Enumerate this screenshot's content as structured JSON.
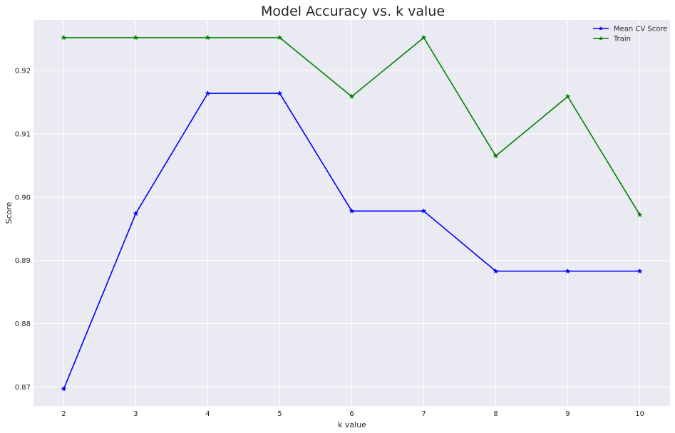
{
  "chart_data": {
    "type": "line",
    "title": "Model Accuracy vs. k value",
    "xlabel": "k value",
    "ylabel": "Score",
    "x": [
      2,
      3,
      4,
      5,
      6,
      7,
      8,
      9,
      10
    ],
    "xlim": [
      1.58,
      10.42
    ],
    "ylim": [
      0.867,
      0.928
    ],
    "xticks": [
      2,
      3,
      4,
      5,
      6,
      7,
      8,
      9,
      10
    ],
    "yticks": [
      0.87,
      0.88,
      0.89,
      0.9,
      0.91,
      0.92
    ],
    "ytick_labels": [
      "0.87",
      "0.88",
      "0.89",
      "0.90",
      "0.91",
      "0.92"
    ],
    "grid": true,
    "legend_position": "top-right",
    "background_color": "#eaeaf2",
    "series": [
      {
        "name": "Mean CV Score",
        "color": "#0000ff",
        "marker": "star",
        "values": [
          0.8697,
          0.8974,
          0.9164,
          0.9164,
          0.8978,
          0.8978,
          0.8883,
          0.8883,
          0.8883
        ]
      },
      {
        "name": "Train",
        "color": "#008000",
        "marker": "star",
        "values": [
          0.9252,
          0.9252,
          0.9252,
          0.9252,
          0.9159,
          0.9252,
          0.9065,
          0.9159,
          0.8972
        ]
      }
    ]
  }
}
